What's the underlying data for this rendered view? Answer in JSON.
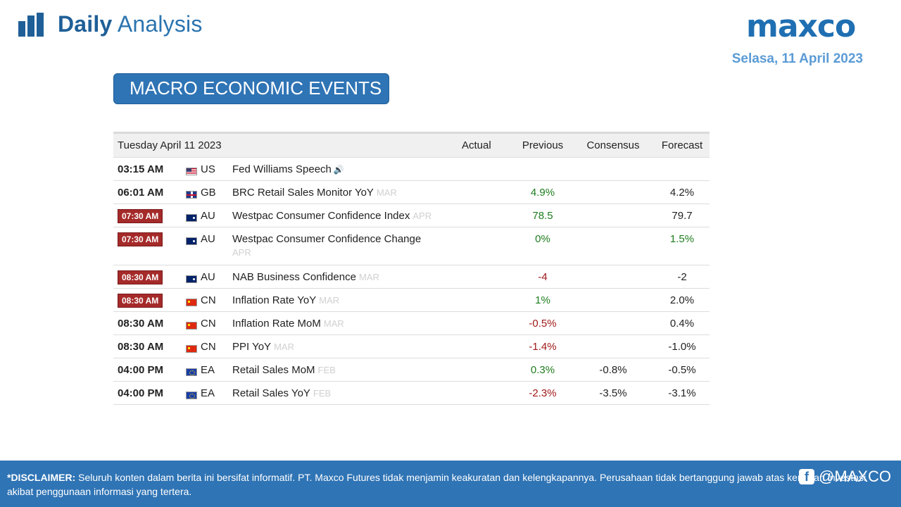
{
  "header": {
    "brand_bold": "Daily",
    "brand_light": "Analysis",
    "logo": "maxco",
    "date": "Selasa, 11 April 2023",
    "section_title": "MACRO ECONOMIC EVENTS"
  },
  "table": {
    "head": {
      "date": "Tuesday April 11 2023",
      "actual": "Actual",
      "previous": "Previous",
      "consensus": "Consensus",
      "forecast": "Forecast"
    },
    "rows": [
      {
        "time": "03:15 AM",
        "highlight": false,
        "flag": "flag-us",
        "country": "US",
        "event": "Fed Williams Speech",
        "period": "",
        "speaker_icon": "speaker-icon",
        "actual": "",
        "previous": "",
        "previous_tone": "neu",
        "consensus": "",
        "forecast": "",
        "forecast_tone": "neu"
      },
      {
        "time": "06:01 AM",
        "highlight": false,
        "flag": "flag-gb",
        "country": "GB",
        "event": "BRC Retail Sales Monitor YoY",
        "period": "MAR",
        "actual": "",
        "previous": "4.9%",
        "previous_tone": "pos",
        "consensus": "",
        "forecast": "4.2%",
        "forecast_tone": "neu"
      },
      {
        "time": "07:30 AM",
        "highlight": true,
        "flag": "flag-au",
        "country": "AU",
        "event": "Westpac Consumer Confidence Index",
        "period": "APR",
        "actual": "",
        "previous": "78.5",
        "previous_tone": "pos",
        "consensus": "",
        "forecast": "79.7",
        "forecast_tone": "neu"
      },
      {
        "time": "07:30 AM",
        "highlight": true,
        "flag": "flag-au",
        "country": "AU",
        "event": "Westpac Consumer Confidence Change",
        "period": "APR",
        "wrap": true,
        "actual": "",
        "previous": "0%",
        "previous_tone": "pos",
        "consensus": "",
        "forecast": "1.5%",
        "forecast_tone": "pos"
      },
      {
        "time": "08:30 AM",
        "highlight": true,
        "flag": "flag-au",
        "country": "AU",
        "event": "NAB Business Confidence",
        "period": "MAR",
        "actual": "",
        "previous": "-4",
        "previous_tone": "neg",
        "consensus": "",
        "forecast": "-2",
        "forecast_tone": "neu"
      },
      {
        "time": "08:30 AM",
        "highlight": true,
        "flag": "flag-cn",
        "country": "CN",
        "event": "Inflation Rate YoY",
        "period": "MAR",
        "actual": "",
        "previous": "1%",
        "previous_tone": "pos",
        "consensus": "",
        "forecast": "2.0%",
        "forecast_tone": "neu"
      },
      {
        "time": "08:30 AM",
        "highlight": false,
        "flag": "flag-cn",
        "country": "CN",
        "event": "Inflation Rate MoM",
        "period": "MAR",
        "actual": "",
        "previous": "-0.5%",
        "previous_tone": "neg",
        "consensus": "",
        "forecast": "0.4%",
        "forecast_tone": "neu"
      },
      {
        "time": "08:30 AM",
        "highlight": false,
        "flag": "flag-cn",
        "country": "CN",
        "event": "PPI YoY",
        "period": "MAR",
        "actual": "",
        "previous": "-1.4%",
        "previous_tone": "neg",
        "consensus": "",
        "forecast": "-1.0%",
        "forecast_tone": "neu"
      },
      {
        "time": "04:00 PM",
        "highlight": false,
        "flag": "flag-eu",
        "country": "EA",
        "event": "Retail Sales MoM",
        "period": "FEB",
        "actual": "",
        "previous": "0.3%",
        "previous_tone": "pos",
        "consensus": "-0.8%",
        "forecast": "-0.5%",
        "forecast_tone": "neu"
      },
      {
        "time": "04:00 PM",
        "highlight": false,
        "flag": "flag-eu",
        "country": "EA",
        "event": "Retail Sales YoY",
        "period": "FEB",
        "actual": "",
        "previous": "-2.3%",
        "previous_tone": "neg",
        "consensus": "-3.5%",
        "forecast": "-3.1%",
        "forecast_tone": "neu"
      }
    ]
  },
  "footer": {
    "disclaimer_label": "*DISCLAIMER:",
    "disclaimer_text": " Seluruh konten dalam berita ini bersifat informatif. PT. Maxco Futures tidak menjamin keakuratan dan kelengkapannya. Perusahaan tidak bertanggung jawab atas kerugian investasi akibat penggunaan informasi yang tertera.",
    "social_handle": "@MAXCO"
  },
  "colors": {
    "brand_blue": "#2f74b5",
    "positive": "#1e7d1e",
    "negative": "#a01818",
    "badge": "#a52a2a"
  }
}
